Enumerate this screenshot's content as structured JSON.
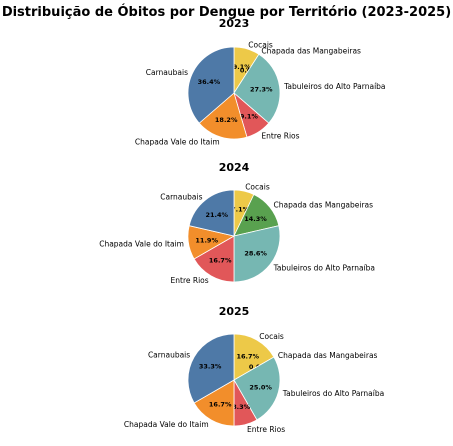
{
  "figure": {
    "title": "Distribuição de Óbitos por Dengue por Território (2023-2025)"
  },
  "colors": {
    "Cocais": "#edc948",
    "Chapada das Mangabeiras": "#59a14f",
    "Tabuleiros do Alto Parnaíba": "#76b7b2",
    "Entre Rios": "#e15759",
    "Chapada Vale do Itaim": "#f28e2b",
    "Carnaubais": "#4e79a7"
  },
  "chart_data": [
    {
      "type": "pie",
      "title": "2023",
      "start_angle": 90,
      "direction": "clockwise",
      "slices": [
        {
          "label": "Cocais",
          "value": 9.1,
          "pct_label": "9.1%"
        },
        {
          "label": "Chapada das Mangabeiras",
          "value": 0.0,
          "pct_label": "0.0%"
        },
        {
          "label": "Tabuleiros do Alto Parnaíba",
          "value": 27.3,
          "pct_label": "27.3%"
        },
        {
          "label": "Entre Rios",
          "value": 9.1,
          "pct_label": "9.1%"
        },
        {
          "label": "Chapada Vale do Itaim",
          "value": 18.2,
          "pct_label": "18.2%"
        },
        {
          "label": "Carnaubais",
          "value": 36.4,
          "pct_label": "36.4%"
        }
      ]
    },
    {
      "type": "pie",
      "title": "2024",
      "start_angle": 90,
      "direction": "clockwise",
      "slices": [
        {
          "label": "Cocais",
          "value": 7.1,
          "pct_label": "7.1%"
        },
        {
          "label": "Chapada das Mangabeiras",
          "value": 14.3,
          "pct_label": "14.3%"
        },
        {
          "label": "Tabuleiros do Alto Parnaíba",
          "value": 28.6,
          "pct_label": "28.6%"
        },
        {
          "label": "Entre Rios",
          "value": 16.7,
          "pct_label": "16.7%"
        },
        {
          "label": "Chapada Vale do Itaim",
          "value": 11.9,
          "pct_label": "11.9%"
        },
        {
          "label": "Carnaubais",
          "value": 21.4,
          "pct_label": "21.4%"
        }
      ]
    },
    {
      "type": "pie",
      "title": "2025",
      "start_angle": 90,
      "direction": "clockwise",
      "slices": [
        {
          "label": "Cocais",
          "value": 16.7,
          "pct_label": "16.7%"
        },
        {
          "label": "Chapada das Mangabeiras",
          "value": 0.0,
          "pct_label": "0.0%"
        },
        {
          "label": "Tabuleiros do Alto Parnaíba",
          "value": 25.0,
          "pct_label": "25.0%"
        },
        {
          "label": "Entre Rios",
          "value": 8.3,
          "pct_label": "8.3%"
        },
        {
          "label": "Chapada Vale do Itaim",
          "value": 16.7,
          "pct_label": "16.7%"
        },
        {
          "label": "Carnaubais",
          "value": 33.3,
          "pct_label": "33.3%"
        }
      ]
    }
  ]
}
